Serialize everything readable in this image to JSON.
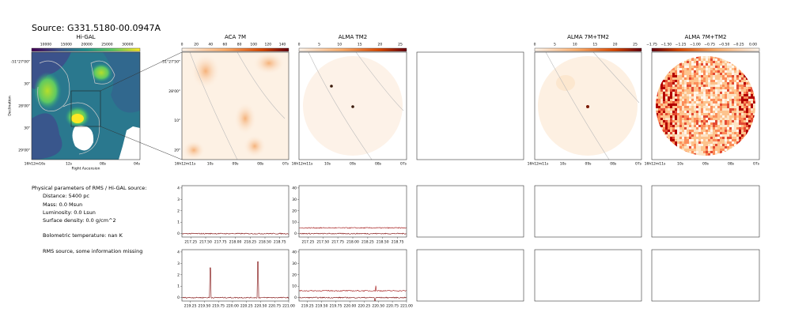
{
  "title": "Source: G331.5180-00.0947A",
  "image_panels": [
    {
      "title": "Hi-GAL",
      "colorbar_ticks": [
        "10000",
        "15000",
        "20000",
        "25000",
        "30000"
      ],
      "y_ticks": [
        "-51°27'00\"",
        "30\"",
        "28'00\"",
        "30\"",
        "29'00\""
      ],
      "x_ticks": [
        "16h12m16s",
        "12s",
        "08s",
        "04s"
      ],
      "y_label": "Declination",
      "x_label": "Right Ascension"
    },
    {
      "title": "ACA 7M",
      "colorbar_ticks": [
        "0",
        "20",
        "40",
        "60",
        "80",
        "100",
        "120",
        "140"
      ],
      "y_ticks": [
        "-51°27'50\"",
        "28'00\"",
        "10\"",
        "20\""
      ],
      "x_ticks": [
        "16h12m11s",
        "10s",
        "09s",
        "08s",
        "07s"
      ]
    },
    {
      "title": "ALMA TM2",
      "colorbar_ticks": [
        "0",
        "5",
        "10",
        "15",
        "20",
        "25"
      ],
      "x_ticks": [
        "16h12m11s",
        "10s",
        "09s",
        "08s",
        "07s"
      ]
    },
    {
      "title": "ALMA 7M+TM2",
      "colorbar_ticks": [
        "0",
        "5",
        "10",
        "15",
        "20",
        "25"
      ],
      "x_ticks": [
        "16h12m11s",
        "10s",
        "09s",
        "08s",
        "07s"
      ]
    },
    {
      "title": "ALMA 7M+TM2",
      "colorbar_ticks": [
        "−1.75",
        "−1.50",
        "−1.25",
        "−1.00",
        "−0.75",
        "−0.50",
        "−0.25",
        "0.00"
      ],
      "x_ticks": [
        "16h12m11s",
        "10s",
        "09s",
        "08s",
        "07s"
      ]
    }
  ],
  "parameters": {
    "heading": "Physical parameters of RMS / Hi-GAL source:",
    "lines": [
      "Distance: 5400 pc",
      "Mass: 0.0 Msun",
      "Luminosity: 0.0 Lsun",
      "Surface density: 0.0 g/cm^2"
    ],
    "bolometric": "Bolometric temperature: nan K",
    "note": "RMS source, some information missing"
  },
  "spectra": {
    "rows": [
      {
        "xlim": [
          217.1,
          218.9
        ],
        "x_ticks": [
          "217.25",
          "217.50",
          "217.75",
          "218.00",
          "218.25",
          "218.50",
          "218.75"
        ]
      },
      {
        "xlim": [
          219.1,
          221.0
        ],
        "x_ticks": [
          "219.25",
          "219.50",
          "219.75",
          "220.00",
          "220.25",
          "220.50",
          "220.75",
          "221.00"
        ]
      }
    ],
    "columns": [
      {
        "ylim": [
          -0.3,
          4.2
        ],
        "y_ticks": [
          "0",
          "1",
          "2",
          "3",
          "4"
        ]
      },
      {
        "ylim": [
          -3,
          42
        ],
        "y_ticks": [
          "0",
          "10",
          "20",
          "30",
          "40"
        ]
      }
    ]
  }
}
